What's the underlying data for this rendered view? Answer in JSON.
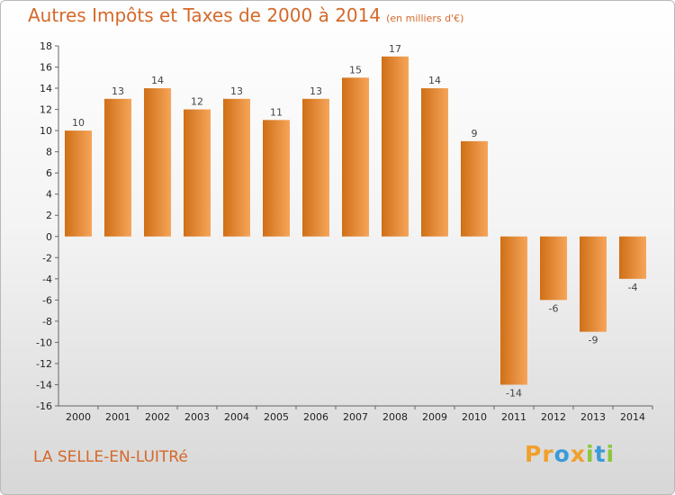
{
  "header": {
    "title": "Autres Impôts et Taxes de 2000 à 2014",
    "unit": "(en milliers d'€)"
  },
  "footer": {
    "commune": "LA SELLE-EN-LUITRé",
    "brand_letters": [
      "P",
      "r",
      "o",
      "x",
      "i",
      "t",
      "i"
    ],
    "brand_colors": [
      "#f0a02c",
      "#f0a02c",
      "#3b9ad9",
      "#f0a02c",
      "#8cc63f",
      "#3b9ad9",
      "#8cc63f"
    ]
  },
  "colors": {
    "accent": "#d4692a",
    "bar_light": "#f6a55a",
    "bar_dark": "#cf6f16"
  },
  "chart_data": {
    "type": "bar",
    "categories": [
      "2000",
      "2001",
      "2002",
      "2003",
      "2004",
      "2005",
      "2006",
      "2007",
      "2008",
      "2009",
      "2010",
      "2011",
      "2012",
      "2013",
      "2014"
    ],
    "values": [
      10,
      13,
      14,
      12,
      13,
      11,
      13,
      15,
      17,
      14,
      9,
      -14,
      -6,
      -9,
      -4
    ],
    "title": "Autres Impôts et Taxes de 2000 à 2014",
    "xlabel": "",
    "ylabel": "",
    "ylim": [
      -16,
      18
    ],
    "yticks": [
      18,
      16,
      14,
      12,
      10,
      8,
      6,
      4,
      2,
      0,
      -2,
      -4,
      -6,
      -8,
      -10,
      -12,
      -14,
      -16
    ],
    "grid": false,
    "legend": "none"
  }
}
